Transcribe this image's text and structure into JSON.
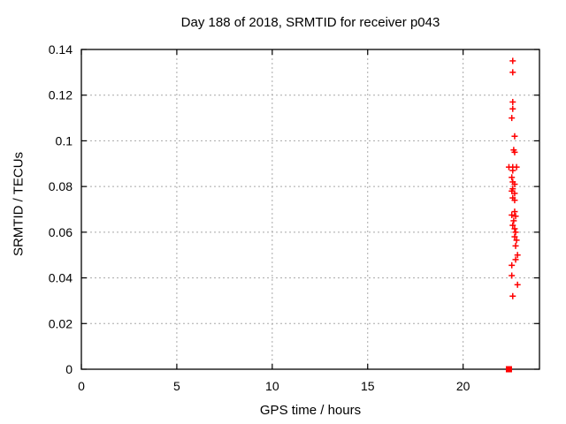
{
  "chart_data": {
    "type": "scatter",
    "title": "Day 188 of 2018, SRMTID for receiver p043",
    "xlabel": "GPS time / hours",
    "ylabel": "SRMTID / TECUs",
    "xlim": [
      0,
      24
    ],
    "ylim": [
      0,
      0.14
    ],
    "xticks": {
      "values": [
        0,
        5,
        10,
        15,
        20
      ],
      "labels": [
        "0",
        "5",
        "10",
        "15",
        "20"
      ]
    },
    "yticks": {
      "values": [
        0,
        0.02,
        0.04,
        0.06,
        0.08,
        0.1,
        0.12,
        0.14
      ],
      "labels": [
        "0",
        "0.02",
        "0.04",
        "0.06",
        "0.08",
        "0.1",
        "0.12",
        "0.14"
      ]
    },
    "grid": true,
    "grid_color": "#a8a8a8",
    "border_color": "#000000",
    "marker_color": "#ff0000",
    "legend": "none",
    "series": [
      {
        "name": "SRMTID",
        "marker": "plus",
        "color": "#ff0000",
        "points": [
          [
            22.6,
            0.135
          ],
          [
            22.6,
            0.13
          ],
          [
            22.6,
            0.117
          ],
          [
            22.6,
            0.114
          ],
          [
            22.55,
            0.11
          ],
          [
            22.7,
            0.102
          ],
          [
            22.65,
            0.096
          ],
          [
            22.7,
            0.095
          ],
          [
            22.4,
            0.0885
          ],
          [
            22.6,
            0.0885
          ],
          [
            22.8,
            0.0885
          ],
          [
            22.6,
            0.087
          ],
          [
            22.55,
            0.084
          ],
          [
            22.6,
            0.082
          ],
          [
            22.7,
            0.081
          ],
          [
            22.6,
            0.079
          ],
          [
            22.55,
            0.078
          ],
          [
            22.7,
            0.077
          ],
          [
            22.6,
            0.075
          ],
          [
            22.7,
            0.074
          ],
          [
            22.7,
            0.069
          ],
          [
            22.55,
            0.0675
          ],
          [
            22.75,
            0.067
          ],
          [
            22.65,
            0.065
          ],
          [
            22.6,
            0.063
          ],
          [
            22.7,
            0.0615
          ],
          [
            22.75,
            0.06
          ],
          [
            22.7,
            0.058
          ],
          [
            22.8,
            0.0565
          ],
          [
            22.75,
            0.054
          ],
          [
            22.85,
            0.05
          ],
          [
            22.75,
            0.048
          ],
          [
            22.55,
            0.0455
          ],
          [
            22.55,
            0.041
          ],
          [
            22.85,
            0.037
          ],
          [
            22.6,
            0.032
          ]
        ]
      },
      {
        "name": "zero-marker",
        "marker": "filled-square",
        "color": "#ff0000",
        "points": [
          [
            22.4,
            0.0
          ]
        ]
      }
    ]
  }
}
